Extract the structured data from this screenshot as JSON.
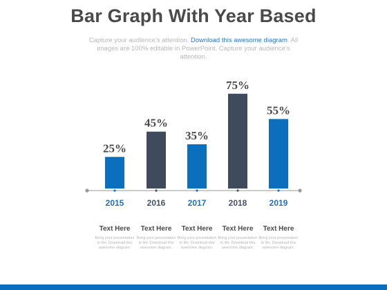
{
  "header": {
    "title": "Bar Graph With Year Based",
    "subtitle_pre": "Capture your audience’s attention. ",
    "subtitle_link": "Download this awesome diagram",
    "subtitle_post": ". All images are 100% editable in PowerPoint. Capture your audience’s attention."
  },
  "chart_data": {
    "type": "bar",
    "categories": [
      "2015",
      "2016",
      "2017",
      "2018",
      "2019"
    ],
    "values": [
      25,
      45,
      35,
      75,
      55
    ],
    "data_labels": [
      "25%",
      "45%",
      "35%",
      "75%",
      "55%"
    ],
    "bar_colors": [
      "#0b6fbd",
      "#3f4b5d",
      "#0b6fbd",
      "#3f4b5d",
      "#0b6fbd"
    ],
    "category_label_colors": [
      "#1f6fb8",
      "#454f5e",
      "#1f6fb8",
      "#454f5e",
      "#1f6fb8"
    ],
    "title": "",
    "xlabel": "",
    "ylabel": "",
    "ylim": [
      0,
      100
    ],
    "grid": false
  },
  "footer": {
    "items": [
      {
        "heading": "Text Here",
        "body": "Bring your presentation to life. Download this awesome diagram."
      },
      {
        "heading": "Text Here",
        "body": "Bring your presentation to life. Download this awesome diagram."
      },
      {
        "heading": "Text Here",
        "body": "Bring your presentation to life. Download this awesome diagram."
      },
      {
        "heading": "Text Here",
        "body": "Bring your presentation to life. Download this awesome diagram."
      },
      {
        "heading": "Text Here",
        "body": "Bring your presentation to life. Download this awesome diagram."
      }
    ]
  },
  "colors": {
    "accent_blue": "#0b6fbd",
    "accent_dark": "#3f4b5d",
    "axis": "#9a9a9a",
    "bottom_bar": "#0b6fbd"
  }
}
